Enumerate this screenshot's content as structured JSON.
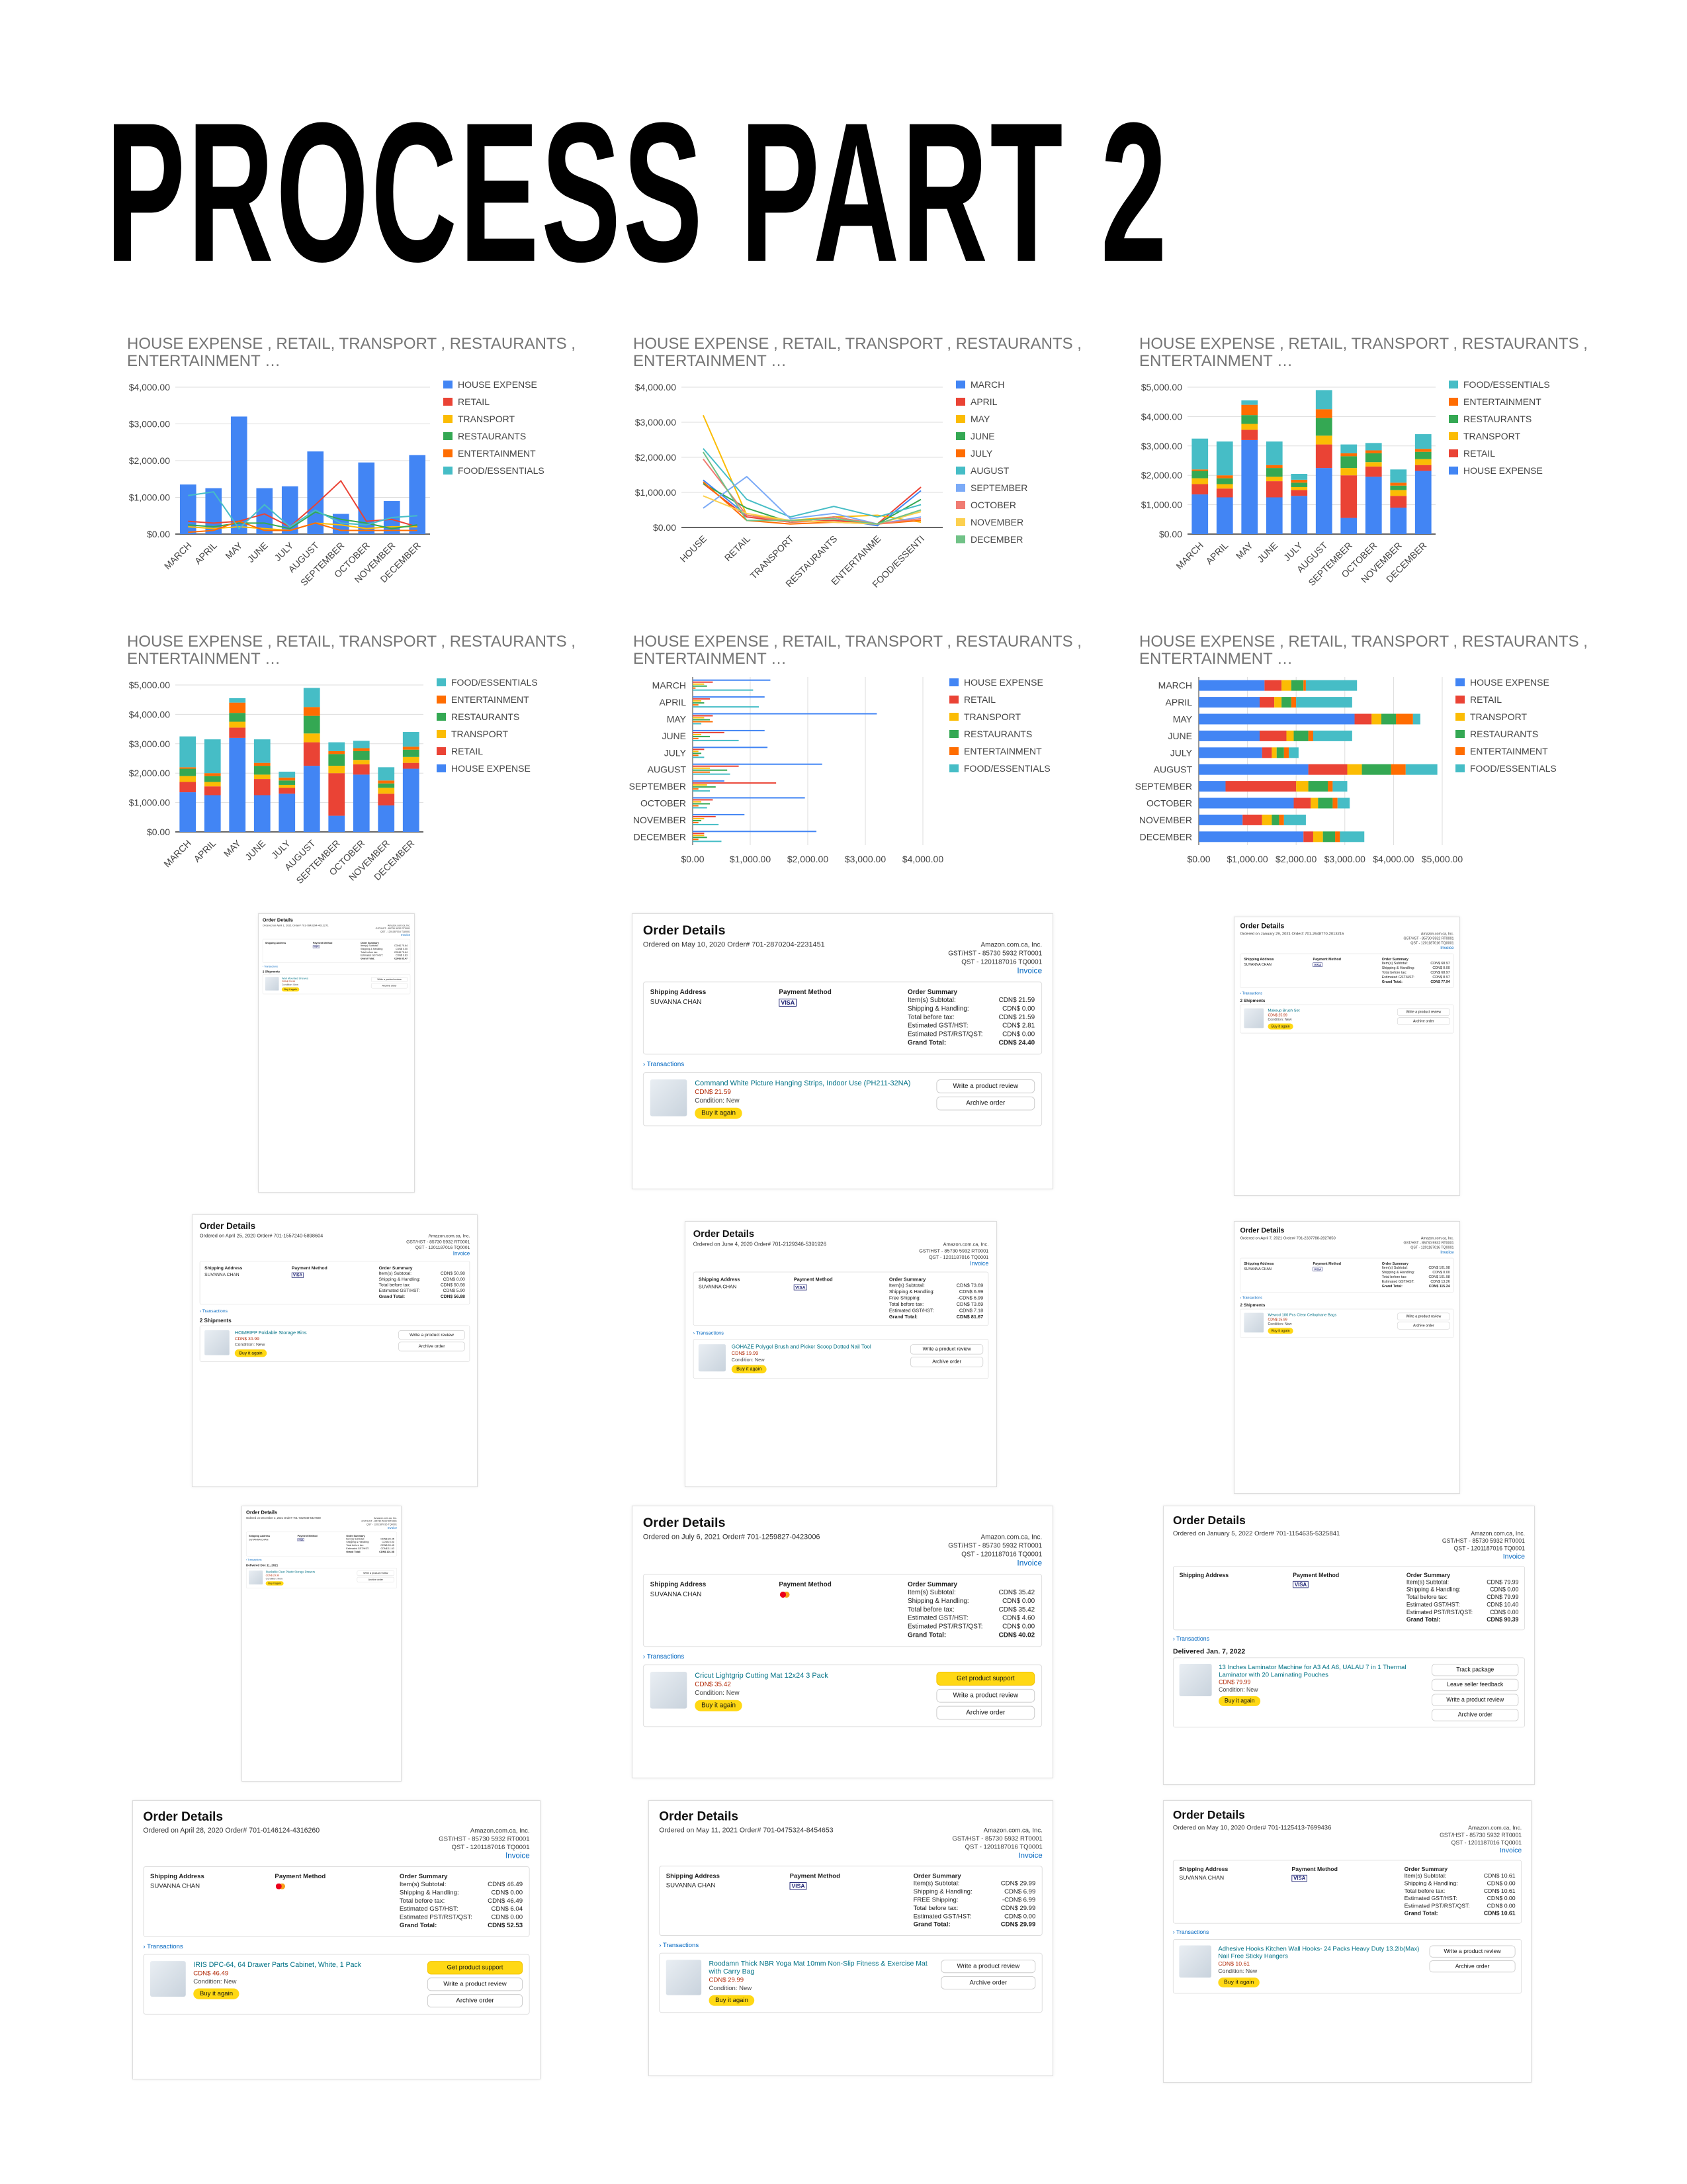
{
  "page_title": "PROCESS PART 2",
  "chart_common": {
    "title_line1": "HOUSE EXPENSE , RETAIL, TRANSPORT , RESTAURANTS ,",
    "title_line2": "ENTERTAINMENT …",
    "months": [
      "MARCH",
      "APRIL",
      "MAY",
      "JUNE",
      "JULY",
      "AUGUST",
      "SEPTEMBER",
      "OCTOBER",
      "NOVEMBER",
      "DECEMBER"
    ],
    "categories": [
      "HOUSE EXPENSE",
      "RETAIL",
      "TRANSPORT",
      "RESTAURANTS",
      "ENTERTAINMENT",
      "FOOD/ESSENTIALS"
    ],
    "category_colors": [
      "#4285f4",
      "#ea4335",
      "#fbbc04",
      "#34a853",
      "#ff6d01",
      "#46bdc6"
    ],
    "month_colors": [
      "#4285f4",
      "#ea4335",
      "#fbbc04",
      "#34a853",
      "#ff6d01",
      "#46bdc6",
      "#7baaf7",
      "#f07b72",
      "#fcd04f",
      "#71c287"
    ],
    "values": {
      "HOUSE EXPENSE": [
        1350,
        1250,
        3200,
        1250,
        1300,
        2250,
        550,
        1950,
        900,
        2150
      ],
      "RETAIL": [
        350,
        300,
        350,
        550,
        200,
        800,
        1450,
        350,
        400,
        200
      ],
      "TRANSPORT": [
        200,
        150,
        200,
        150,
        100,
        300,
        250,
        150,
        200,
        200
      ],
      "RESTAURANTS": [
        250,
        200,
        300,
        300,
        150,
        600,
        400,
        300,
        150,
        250
      ],
      "ENTERTAINMENT": [
        50,
        100,
        350,
        100,
        100,
        300,
        100,
        100,
        100,
        100
      ],
      "FOOD/ESSENTIALS": [
        1050,
        1150,
        150,
        800,
        200,
        650,
        300,
        250,
        450,
        500
      ]
    }
  },
  "chart_data": [
    {
      "type": "bar",
      "title": "HOUSE EXPENSE , RETAIL, TRANSPORT , RESTAURANTS , ENTERTAINMENT …",
      "variant": "columns-with-lines",
      "categories": [
        "MARCH",
        "APRIL",
        "MAY",
        "JUNE",
        "JULY",
        "AUGUST",
        "SEPTEMBER",
        "OCTOBER",
        "NOVEMBER",
        "DECEMBER"
      ],
      "series": [
        {
          "name": "HOUSE EXPENSE",
          "values": [
            1350,
            1250,
            3200,
            1250,
            1300,
            2250,
            550,
            1950,
            900,
            2150
          ]
        },
        {
          "name": "RETAIL",
          "values": [
            350,
            300,
            350,
            550,
            200,
            800,
            1450,
            350,
            400,
            200
          ]
        },
        {
          "name": "TRANSPORT",
          "values": [
            200,
            150,
            200,
            150,
            100,
            300,
            250,
            150,
            200,
            200
          ]
        },
        {
          "name": "RESTAURANTS",
          "values": [
            250,
            200,
            300,
            300,
            150,
            600,
            400,
            300,
            150,
            250
          ]
        },
        {
          "name": "ENTERTAINMENT",
          "values": [
            50,
            100,
            350,
            100,
            100,
            300,
            100,
            100,
            100,
            100
          ]
        },
        {
          "name": "FOOD/ESSENTIALS",
          "values": [
            1050,
            1150,
            150,
            800,
            200,
            650,
            300,
            250,
            450,
            500
          ]
        }
      ],
      "ylim": [
        0,
        4000
      ],
      "yticks": [
        "$0.00",
        "$1,000.00",
        "$2,000.00",
        "$3,000.00",
        "$4,000.00"
      ],
      "legend": "right"
    },
    {
      "type": "line",
      "title": "HOUSE EXPENSE , RETAIL, TRANSPORT , RESTAURANTS , ENTERTAINMENT …",
      "categories": [
        "HOUSE",
        "RETAIL",
        "TRANSPORT",
        "RESTAURANTS",
        "ENTERTAINME",
        "FOOD/ESSENTI"
      ],
      "series_names": [
        "MARCH",
        "APRIL",
        "MAY",
        "JUNE",
        "JULY",
        "AUGUST",
        "SEPTEMBER",
        "OCTOBER",
        "NOVEMBER",
        "DECEMBER"
      ],
      "ylim": [
        0,
        4000
      ],
      "yticks": [
        "$0.00",
        "$1,000.00",
        "$2,000.00",
        "$3,000.00",
        "$4,000.00"
      ],
      "legend": "right"
    },
    {
      "type": "bar",
      "title": "HOUSE EXPENSE , RETAIL, TRANSPORT , RESTAURANTS , ENTERTAINMENT …",
      "variant": "stacked-columns",
      "legend_order": [
        "FOOD/ESSENTIALS",
        "ENTERTAINMENT",
        "RESTAURANTS",
        "TRANSPORT",
        "RETAIL",
        "HOUSE EXPENSE"
      ],
      "ylim": [
        0,
        5000
      ],
      "yticks": [
        "$0.00",
        "$1,000.00",
        "$2,000.00",
        "$3,000.00",
        "$4,000.00",
        "$5,000.00"
      ],
      "legend": "right"
    },
    {
      "type": "bar",
      "title": "HOUSE EXPENSE , RETAIL, TRANSPORT , RESTAURANTS , ENTERTAINMENT …",
      "variant": "stacked-columns",
      "legend_order": [
        "FOOD/ESSENTIALS",
        "ENTERTAINMENT",
        "RESTAURANTS",
        "TRANSPORT",
        "RETAIL",
        "HOUSE EXPENSE"
      ],
      "ylim": [
        0,
        5000
      ],
      "yticks": [
        "$0.00",
        "$1,000.00",
        "$2,000.00",
        "$3,000.00",
        "$4,000.00",
        "$5,000.00"
      ],
      "legend": "right"
    },
    {
      "type": "bar",
      "title": "HOUSE EXPENSE , RETAIL, TRANSPORT , RESTAURANTS , ENTERTAINMENT …",
      "variant": "grouped-horizontal",
      "xlim": [
        0,
        4000
      ],
      "xticks": [
        "$0.00",
        "$1,000.00",
        "$2,000.00",
        "$3,000.00",
        "$4,000.00"
      ],
      "legend": "right"
    },
    {
      "type": "bar",
      "title": "HOUSE EXPENSE , RETAIL, TRANSPORT , RESTAURANTS , ENTERTAINMENT …",
      "variant": "stacked-horizontal",
      "xlim": [
        0,
        5000
      ],
      "xticks": [
        "$0.00",
        "$1,000.00",
        "$2,000.00",
        "$3,000.00",
        "$4,000.00",
        "$5,000.00"
      ],
      "legend": "right"
    }
  ],
  "orders": [
    {
      "date": "Ordered on April 1, 2021",
      "num": "Order# 701-7843294-4012271",
      "addr": "",
      "pay": "visa",
      "sum": [
        [
          "Item(s) Subtotal:",
          "CDN$ 75.64"
        ],
        [
          "Shipping & Handling:",
          "CDN$ 0.00"
        ],
        [
          "Total before tax:",
          "CDN$ 75.64"
        ],
        [
          "Estimated GST/HST:",
          "CDN$ 9.83"
        ],
        [
          "Grand Total:",
          "CDN$ 85.47"
        ]
      ],
      "ship_head": "2 Shipments",
      "prod": "Wall Mounted Shelves",
      "price": "CDN$ 31.99",
      "btns": [
        "Write a product review",
        "Archive order"
      ]
    },
    {
      "date": "Ordered on May 10, 2020",
      "num": "Order# 701-2870204-2231451",
      "addr": "SUVANNA CHAN",
      "pay": "visa",
      "sum": [
        [
          "Item(s) Subtotal:",
          "CDN$ 21.59"
        ],
        [
          "Shipping & Handling:",
          "CDN$ 0.00"
        ],
        [
          "Total before tax:",
          "CDN$ 21.59"
        ],
        [
          "Estimated GST/HST:",
          "CDN$ 2.81"
        ],
        [
          "Estimated PST/RST/QST:",
          "CDN$ 0.00"
        ],
        [
          "Grand Total:",
          "CDN$ 24.40"
        ]
      ],
      "ship_head": "",
      "prod": "Command White Picture Hanging Strips, Indoor Use (PH211-32NA)",
      "price": "CDN$ 21.59",
      "btns": [
        "Write a product review",
        "Archive order"
      ]
    },
    {
      "date": "Ordered on January 29, 2021",
      "num": "Order# 701-2648770-2013215",
      "addr": "SUVANNA CHAN",
      "pay": "visa",
      "sum": [
        [
          "Item(s) Subtotal:",
          "CDN$ 68.97"
        ],
        [
          "Shipping & Handling:",
          "CDN$ 0.00"
        ],
        [
          "Total before tax:",
          "CDN$ 68.97"
        ],
        [
          "Estimated GST/HST:",
          "CDN$ 8.97"
        ],
        [
          "Grand Total:",
          "CDN$ 77.94"
        ]
      ],
      "ship_head": "2 Shipments",
      "prod": "Makeup Brush Set",
      "price": "CDN$ 25.99",
      "btns": [
        "Write a product review",
        "Archive order"
      ]
    },
    {
      "date": "Ordered on April 25, 2020",
      "num": "Order# 701-1557240-5898604",
      "addr": "SUVANNA CHAN",
      "pay": "visa",
      "sum": [
        [
          "Item(s) Subtotal:",
          "CDN$ 50.98"
        ],
        [
          "Shipping & Handling:",
          "CDN$ 0.00"
        ],
        [
          "Total before tax:",
          "CDN$ 50.98"
        ],
        [
          "Estimated GST/HST:",
          "CDN$ 5.90"
        ],
        [
          "Grand Total:",
          "CDN$ 56.88"
        ]
      ],
      "ship_head": "2 Shipments",
      "prod": "HOMEIPP Foldable Storage Bins",
      "price": "CDN$ 30.99",
      "btns": [
        "Write a product review",
        "Archive order"
      ]
    },
    {
      "date": "Ordered on June 4, 2020",
      "num": "Order# 701-2129346-5391926",
      "addr": "SUVANNA CHAN",
      "pay": "visa",
      "sum": [
        [
          "Item(s) Subtotal:",
          "CDN$ 73.69"
        ],
        [
          "Shipping & Handling:",
          "CDN$ 6.99"
        ],
        [
          "Free Shipping:",
          "-CDN$ 6.99"
        ],
        [
          "Total before tax:",
          "CDN$ 73.69"
        ],
        [
          "Estimated GST/HST:",
          "CDN$ 7.18"
        ],
        [
          "Grand Total:",
          "CDN$ 81.67"
        ]
      ],
      "ship_head": "",
      "prod": "GOHAZE Polygel Brush and Picker Scoop Dotted Nail Tool",
      "price": "CDN$ 19.99",
      "btns": [
        "Write a product review",
        "Archive order"
      ]
    },
    {
      "date": "Ordered on April 7, 2021",
      "num": "Order# 701-2337788-2827850",
      "addr": "SUVANNA CHAN",
      "pay": "visa",
      "sum": [
        [
          "Item(s) Subtotal:",
          "CDN$ 101.98"
        ],
        [
          "Shipping & Handling:",
          "CDN$ 0.00"
        ],
        [
          "Total before tax:",
          "CDN$ 101.98"
        ],
        [
          "Estimated GST/HST:",
          "CDN$ 13.26"
        ],
        [
          "Grand Total:",
          "CDN$ 115.24"
        ]
      ],
      "ship_head": "2 Shipments",
      "prod": "Wewod 100 Pcs Clear Cellophane Bags",
      "price": "CDN$ 15.99",
      "btns": [
        "Write a product review",
        "Archive order"
      ]
    },
    {
      "date": "Ordered on December 2, 2021",
      "num": "Order# 701-7319048-6427830",
      "addr": "SUVANNA CHAN",
      "pay": "visa",
      "sum": [
        [
          "Item(s) Subtotal:",
          "CDN$ 89.45"
        ],
        [
          "Shipping & Handling:",
          "CDN$ 0.00"
        ],
        [
          "Total before tax:",
          "CDN$ 89.45"
        ],
        [
          "Estimated GST/HST:",
          "CDN$ 11.63"
        ],
        [
          "Grand Total:",
          "CDN$ 101.08"
        ]
      ],
      "ship_head": "Delivered Dec 11, 2021",
      "prod": "Stackable Clear Plastic Storage Drawers",
      "price": "CDN$ 29.99",
      "btns": [
        "Write a product review",
        "Archive order"
      ]
    },
    {
      "date": "Ordered on July 6, 2021",
      "num": "Order# 701-1259827-0423006",
      "addr": "SUVANNA CHAN",
      "pay": "mc",
      "sum": [
        [
          "Item(s) Subtotal:",
          "CDN$ 35.42"
        ],
        [
          "Shipping & Handling:",
          "CDN$ 0.00"
        ],
        [
          "Total before tax:",
          "CDN$ 35.42"
        ],
        [
          "Estimated GST/HST:",
          "CDN$ 4.60"
        ],
        [
          "Estimated PST/RST/QST:",
          "CDN$ 0.00"
        ],
        [
          "Grand Total:",
          "CDN$ 40.02"
        ]
      ],
      "ship_head": "",
      "prod": "Cricut Lightgrip Cutting Mat 12x24 3 Pack",
      "price": "CDN$ 35.42",
      "btns": [
        "Get product support",
        "Write a product review",
        "Archive order"
      ]
    },
    {
      "date": "Ordered on January 5, 2022",
      "num": "Order# 701-1154635-5325841",
      "addr": "",
      "pay": "visa",
      "sum": [
        [
          "Item(s) Subtotal:",
          "CDN$ 79.99"
        ],
        [
          "Shipping & Handling:",
          "CDN$ 0.00"
        ],
        [
          "Total before tax:",
          "CDN$ 79.99"
        ],
        [
          "Estimated GST/HST:",
          "CDN$ 10.40"
        ],
        [
          "Estimated PST/RST/QST:",
          "CDN$ 0.00"
        ],
        [
          "Grand Total:",
          "CDN$ 90.39"
        ]
      ],
      "ship_head": "Delivered Jan. 7, 2022",
      "prod": "13 Inches Laminator Machine for A3 A4 A6, UALAU 7 in 1 Thermal Laminator with 20 Laminating Pouches",
      "price": "CDN$ 79.99",
      "btns": [
        "Track package",
        "Leave seller feedback",
        "Write a product review",
        "Archive order"
      ]
    },
    {
      "date": "Ordered on April 28, 2020",
      "num": "Order# 701-0146124-4316260",
      "addr": "SUVANNA CHAN",
      "pay": "mc",
      "sum": [
        [
          "Item(s) Subtotal:",
          "CDN$ 46.49"
        ],
        [
          "Shipping & Handling:",
          "CDN$ 0.00"
        ],
        [
          "Total before tax:",
          "CDN$ 46.49"
        ],
        [
          "Estimated GST/HST:",
          "CDN$ 6.04"
        ],
        [
          "Estimated PST/RST/QST:",
          "CDN$ 0.00"
        ],
        [
          "Grand Total:",
          "CDN$ 52.53"
        ]
      ],
      "ship_head": "",
      "prod": "IRIS DPC-64, 64 Drawer Parts Cabinet, White, 1 Pack",
      "price": "CDN$ 46.49",
      "btns": [
        "Get product support",
        "Write a product review",
        "Archive order"
      ]
    },
    {
      "date": "Ordered on May 11, 2021",
      "num": "Order# 701-0475324-8454653",
      "addr": "SUVANNA CHAN",
      "pay": "visa",
      "sum": [
        [
          "Item(s) Subtotal:",
          "CDN$ 29.99"
        ],
        [
          "Shipping & Handling:",
          "CDN$ 6.99"
        ],
        [
          "FREE Shipping:",
          "-CDN$ 6.99"
        ],
        [
          "Total before tax:",
          "CDN$ 29.99"
        ],
        [
          "Estimated GST/HST:",
          "CDN$ 0.00"
        ],
        [
          "Grand Total:",
          "CDN$ 29.99"
        ]
      ],
      "ship_head": "",
      "prod": "Roodamn Thick NBR Yoga Mat 10mm Non-Slip Fitness & Exercise Mat with Carry Bag",
      "price": "CDN$ 29.99",
      "btns": [
        "Write a product review",
        "Archive order"
      ]
    },
    {
      "date": "Ordered on May 10, 2020",
      "num": "Order# 701-1125413-7699436",
      "addr": "SUVANNA CHAN",
      "pay": "visa",
      "sum": [
        [
          "Item(s) Subtotal:",
          "CDN$ 10.61"
        ],
        [
          "Shipping & Handling:",
          "CDN$ 0.00"
        ],
        [
          "Total before tax:",
          "CDN$ 10.61"
        ],
        [
          "Estimated GST/HST:",
          "CDN$ 0.00"
        ],
        [
          "Estimated PST/RST/QST:",
          "CDN$ 0.00"
        ],
        [
          "Grand Total:",
          "CDN$ 10.61"
        ]
      ],
      "ship_head": "",
      "prod": "Adhesive Hooks Kitchen Wall Hooks- 24 Packs Heavy Duty 13.2lb(Max) Nail Free Sticky Hangers",
      "price": "CDN$ 10.61",
      "btns": [
        "Write a product review",
        "Archive order"
      ]
    }
  ],
  "order_common": {
    "heading": "Order Details",
    "seller": "Amazon.com.ca, Inc.",
    "gst": "GST/HST - 85730 5932 RT0001",
    "qst": "QST - 1201187016 TQ0001",
    "invoice": "Invoice",
    "ship_addr_label": "Shipping Address",
    "pay_label": "Payment Method",
    "sum_label": "Order Summary",
    "transactions": "Transactions",
    "buy_again": "Buy it again",
    "condition": "Condition: New",
    "visa": "VISA"
  }
}
